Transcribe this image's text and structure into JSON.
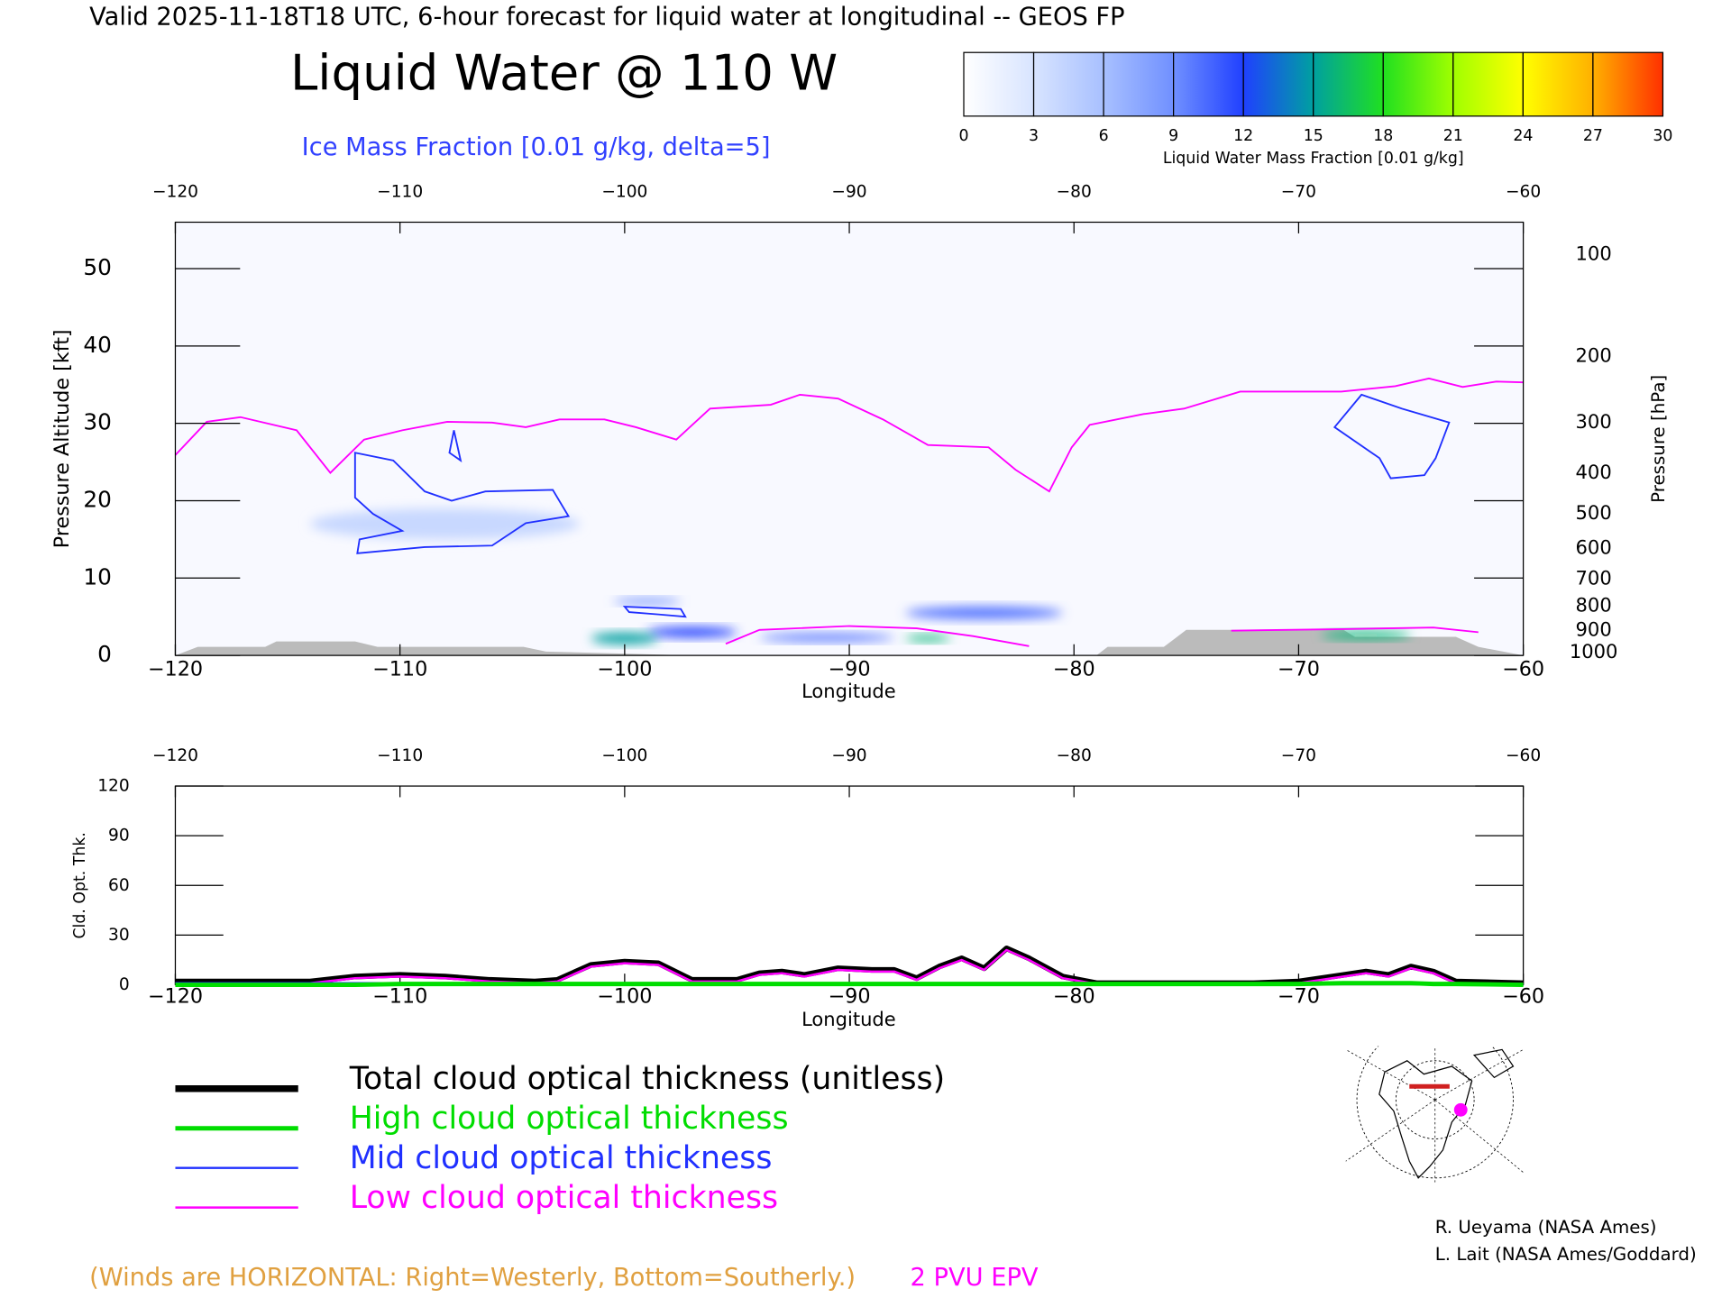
{
  "header": {
    "valid": "Valid 2025-11-18T18 UTC, 6-hour forecast for liquid water at longitudinal -- GEOS FP",
    "title": "Liquid Water @ 110 W",
    "subtitle": "Ice Mass Fraction [0.01 g/kg, delta=5]"
  },
  "colorbar": {
    "label": "Liquid Water Mass Fraction [0.01 g/kg]",
    "ticks": [
      0,
      3,
      6,
      9,
      12,
      15,
      18,
      21,
      24,
      27,
      30
    ],
    "colors": [
      "#ffffff",
      "#d8e4ff",
      "#a8c0ff",
      "#7090ff",
      "#2040ff",
      "#00a0a0",
      "#20e020",
      "#a0ff00",
      "#ffff00",
      "#ffb000",
      "#ff3000"
    ]
  },
  "chart_data": [
    {
      "type": "cross-section",
      "xlabel": "Longitude",
      "ylabel": "Pressure Altitude [kft]",
      "y2label": "Pressure [hPa]",
      "annotation": "(Winds are HORIZONTAL: Right=Westerly, Bottom=Southerly.)",
      "xlim": [
        -120,
        -60
      ],
      "xticks": [
        {
          "value": -120,
          "label": "−120"
        },
        {
          "value": -110,
          "label": "−110"
        },
        {
          "value": -100,
          "label": "−100"
        },
        {
          "value": -90,
          "label": "−90"
        },
        {
          "value": -80,
          "label": "−80"
        },
        {
          "value": -70,
          "label": "−70"
        },
        {
          "value": -60,
          "label": "−60"
        }
      ],
      "ylim": [
        0,
        56
      ],
      "yticks": [
        0,
        10,
        20,
        30,
        40,
        50
      ],
      "y2ticks": [
        100,
        200,
        300,
        400,
        500,
        600,
        700,
        800,
        900,
        1000
      ],
      "x": [
        -120,
        -118.6,
        -117.1,
        -114.6,
        -113.1,
        -111.6,
        -109.9,
        -107.9,
        -105.9,
        -104.4,
        -102.9,
        -100.9,
        -99.5,
        -97.7,
        -96.2,
        -93.5,
        -92.2,
        -90.5,
        -88.5,
        -86.5,
        -83.8,
        -82.6,
        -81.1,
        -80.1,
        -79.3,
        -76.9,
        -75.1,
        -72.6,
        -68.1,
        -65.7,
        -64.2,
        -62.7,
        -61.2,
        -60,
        -96,
        -95.5,
        -94,
        -90,
        -87,
        -84.5,
        -82,
        -75,
        -73,
        -68,
        -64,
        -62
      ],
      "series": [
        {
          "name": "2 PVU EPV",
          "color": "#ff00ff",
          "values": [
            25.9,
            30.2,
            30.8,
            29.1,
            23.6,
            27.9,
            29.1,
            30.2,
            30.1,
            29.5,
            30.5,
            30.5,
            29.5,
            27.9,
            31.9,
            32.4,
            33.7,
            33.2,
            30.5,
            27.2,
            26.9,
            24.0,
            21.2,
            26.9,
            29.8,
            31.2,
            31.9,
            34.1,
            34.1,
            34.8,
            35.8,
            34.7,
            35.4,
            35.3,
            null,
            1.5,
            3.3,
            3.8,
            3.5,
            2.5,
            1.2,
            null,
            3.2,
            3.4,
            3.6,
            3.0
          ]
        }
      ],
      "contours": [
        {
          "lon": [
            -112,
            -110.3,
            -108.9,
            -107.7,
            -106.2,
            -103.2,
            -102.5,
            -104.4,
            -105.9,
            -108.9,
            -111.9,
            -111.8,
            -109.9,
            -111.2,
            -112
          ],
          "kft": [
            26.2,
            25.2,
            21.2,
            20.0,
            21.2,
            21.4,
            18.0,
            17.1,
            14.2,
            14.0,
            13.2,
            15.0,
            16.1,
            18.3,
            20.4
          ]
        },
        {
          "lon": [
            -68.4,
            -67.2,
            -65.4,
            -63.3,
            -63.9,
            -64.4,
            -65.9,
            -66.4
          ],
          "kft": [
            29.5,
            33.7,
            31.9,
            30.1,
            25.5,
            23.3,
            22.9,
            25.5
          ]
        },
        {
          "lon": [
            -107.6,
            -107.3,
            -107.8
          ],
          "kft": [
            29.1,
            25.2,
            26.2
          ]
        },
        {
          "lon": [
            -100,
            -97.5,
            -97.3,
            -98.5,
            -99.8
          ],
          "kft": [
            6.3,
            6.0,
            5.0,
            5.3,
            5.6
          ]
        }
      ],
      "contour_color": "#2030ff",
      "liquid_water": [
        {
          "lon": -108,
          "kft": 17,
          "value": 4,
          "lon_extent": 12,
          "kft_extent": 4
        },
        {
          "lon": -99,
          "kft": 7,
          "value": 9,
          "lon_extent": 3,
          "kft_extent": 0.8
        },
        {
          "lon": -97,
          "kft": 3,
          "value": 12,
          "lon_extent": 4,
          "kft_extent": 1.3
        },
        {
          "lon": -100,
          "kft": 2.2,
          "value": 15,
          "lon_extent": 3,
          "kft_extent": 1.4
        },
        {
          "lon": -91,
          "kft": 2.3,
          "value": 10,
          "lon_extent": 6,
          "kft_extent": 1
        },
        {
          "lon": -86.5,
          "kft": 2.2,
          "value": 16,
          "lon_extent": 2,
          "kft_extent": 0.8
        },
        {
          "lon": -84,
          "kft": 5.5,
          "value": 10,
          "lon_extent": 7,
          "kft_extent": 1.6
        },
        {
          "lon": -67,
          "kft": 2.6,
          "value": 16,
          "lon_extent": 4,
          "kft_extent": 1
        }
      ],
      "terrain": {
        "color": "#bbbbbb",
        "lon": [
          -120,
          -119,
          -116,
          -115.5,
          -112,
          -111,
          -104.5,
          -103.5,
          -97,
          -79,
          -78.5,
          -76,
          -75.5,
          -75,
          -68,
          -67.5,
          -63,
          -62,
          -60
        ],
        "kft": [
          0,
          1.1,
          1.1,
          1.8,
          1.8,
          1.1,
          1.1,
          0.5,
          0,
          0,
          1.1,
          1.1,
          2.2,
          3.3,
          3.3,
          2.4,
          2.4,
          1.1,
          0
        ]
      }
    },
    {
      "type": "line",
      "xlabel": "Longitude",
      "ylabel": "Cld. Opt. Thk.",
      "xlim": [
        -120,
        -60
      ],
      "xticks": [
        {
          "value": -120,
          "label": "−120"
        },
        {
          "value": -110,
          "label": "−110"
        },
        {
          "value": -100,
          "label": "−100"
        },
        {
          "value": -90,
          "label": "−90"
        },
        {
          "value": -80,
          "label": "−80"
        },
        {
          "value": -70,
          "label": "−70"
        },
        {
          "value": -60,
          "label": "−60"
        }
      ],
      "ylim": [
        0,
        120
      ],
      "yticks": [
        0,
        30,
        60,
        90,
        120
      ],
      "x": [
        -120,
        -114,
        -112,
        -110,
        -108,
        -106,
        -104,
        -103,
        -101.5,
        -100,
        -98.5,
        -97,
        -95,
        -94,
        -93,
        -92,
        -90.5,
        -89,
        -88,
        -87,
        -86,
        -85,
        -84,
        -83,
        -82,
        -80.5,
        -79,
        -76,
        -72,
        -70,
        -68,
        -67,
        -66,
        -65,
        -64,
        -63,
        -60
      ],
      "series": [
        {
          "name": "Total cloud optical thickness (unitless)",
          "color": "#000000",
          "line_width": 6,
          "values": [
            2,
            2,
            5,
            6,
            5,
            3,
            2,
            3,
            12,
            14,
            13,
            3,
            3,
            7,
            8,
            6,
            10,
            9,
            9,
            4,
            11,
            16,
            10,
            22,
            16,
            5,
            1,
            1,
            1,
            2,
            6,
            8,
            6,
            11,
            8,
            2,
            1
          ]
        },
        {
          "name": "High cloud optical thickness",
          "color": "#00dd00",
          "line_width": 4,
          "values": [
            0,
            0,
            0,
            0.5,
            0.5,
            0.5,
            0.5,
            0.5,
            0.5,
            0.5,
            0.5,
            0.5,
            0.5,
            0.5,
            0.5,
            0.5,
            0.5,
            0.5,
            0.5,
            0.5,
            0.5,
            0.5,
            0.5,
            0.5,
            0.5,
            0.5,
            0.5,
            0.5,
            0.5,
            0.5,
            1,
            1,
            1,
            1,
            0.5,
            0.5,
            0
          ]
        },
        {
          "name": "Mid cloud optical thickness",
          "color": "#2030ff",
          "line_width": 2,
          "values": [
            1,
            1,
            1,
            1,
            1,
            1,
            0.5,
            0.5,
            0.5,
            0.5,
            0.5,
            0.5,
            0.5,
            0.5,
            0.5,
            0.5,
            0.5,
            0.5,
            0.5,
            0.5,
            0.5,
            0.5,
            0.5,
            0.5,
            0.5,
            0.5,
            0.5,
            0,
            0,
            0.5,
            0.5,
            0.5,
            0.5,
            0.5,
            0,
            0,
            0
          ]
        },
        {
          "name": "Low cloud optical thickness",
          "color": "#ff00ff",
          "line_width": 2,
          "values": [
            1,
            1,
            4,
            5,
            4,
            2,
            1,
            2,
            11,
            13,
            12,
            2,
            2,
            6,
            7,
            5,
            9,
            8,
            8,
            3,
            10,
            15,
            9,
            21,
            15,
            4,
            0.5,
            0.5,
            0.5,
            1,
            5,
            7,
            5,
            10,
            7,
            1,
            0.5
          ]
        }
      ]
    }
  ],
  "credits": [
    "R. Ueyama (NASA Ames)",
    "L. Lait (NASA Ames/Goddard)"
  ]
}
